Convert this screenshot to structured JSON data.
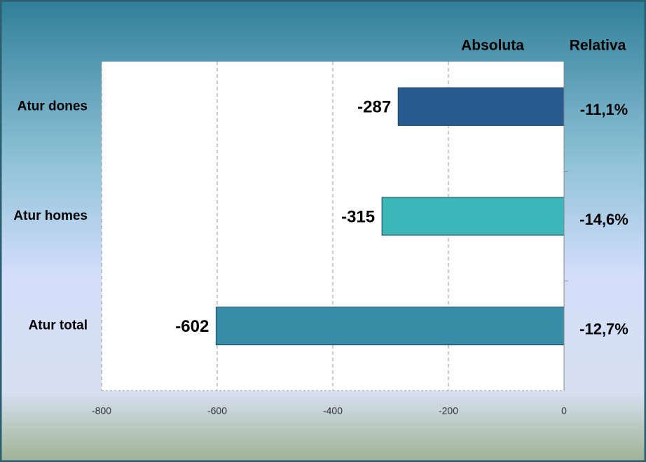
{
  "chart_data": {
    "type": "barh",
    "categories": [
      "Atur dones",
      "Atur homes",
      "Atur total"
    ],
    "series": [
      {
        "name": "Absoluta",
        "values": [
          -287,
          -315,
          -602
        ],
        "colors": [
          "#275a8e",
          "#3bb6b9",
          "#388ea6"
        ]
      },
      {
        "name": "Relativa",
        "values": [
          -11.1,
          -14.6,
          -12.7
        ],
        "value_labels": [
          "-11,1%",
          "-14,6%",
          "-12,7%"
        ]
      }
    ],
    "xlim": [
      -800,
      0
    ],
    "xticks": [
      -800,
      -600,
      -400,
      -200,
      0
    ],
    "grid": true
  }
}
